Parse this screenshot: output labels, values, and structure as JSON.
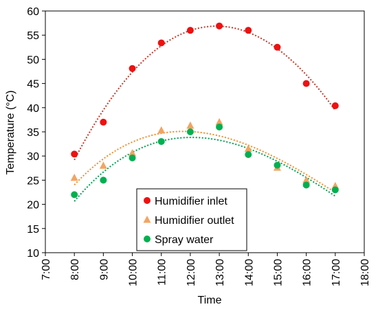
{
  "chart_data": {
    "type": "scatter",
    "title": "",
    "xlabel": "Time",
    "ylabel": "Temperature (°C)",
    "x_ticks": [
      "7:00",
      "8:00",
      "9:00",
      "10:00",
      "11:00",
      "12:00",
      "13:00",
      "14:00",
      "15:00",
      "16:00",
      "17:00",
      "18:00"
    ],
    "y_ticks": [
      "10",
      "15",
      "20",
      "25",
      "30",
      "35",
      "40",
      "45",
      "50",
      "55",
      "60"
    ],
    "xlim": [
      7,
      18
    ],
    "ylim": [
      10,
      60
    ],
    "grid": false,
    "legend_position": "bottom-center",
    "x": [
      8,
      9,
      10,
      11,
      12,
      13,
      14,
      15,
      16,
      17
    ],
    "series": [
      {
        "name": "Humidifier inlet",
        "marker": "circle",
        "color": "#ee1111",
        "trend_color": "#c0392b",
        "values": [
          30.4,
          37.0,
          48.1,
          53.4,
          56.0,
          56.9,
          56.0,
          52.5,
          45.0,
          40.4
        ]
      },
      {
        "name": "Humidifier outlet",
        "marker": "triangle",
        "color": "#f4a460",
        "trend_color": "#f28c28",
        "values": [
          25.5,
          28.0,
          30.6,
          35.3,
          36.3,
          37.0,
          31.5,
          27.6,
          25.0,
          23.8
        ]
      },
      {
        "name": "Spray water",
        "marker": "circle",
        "color": "#00b050",
        "trend_color": "#00a050",
        "values": [
          22.0,
          25.0,
          29.6,
          33.0,
          35.0,
          36.0,
          30.3,
          28.1,
          24.0,
          23.0
        ]
      }
    ]
  }
}
